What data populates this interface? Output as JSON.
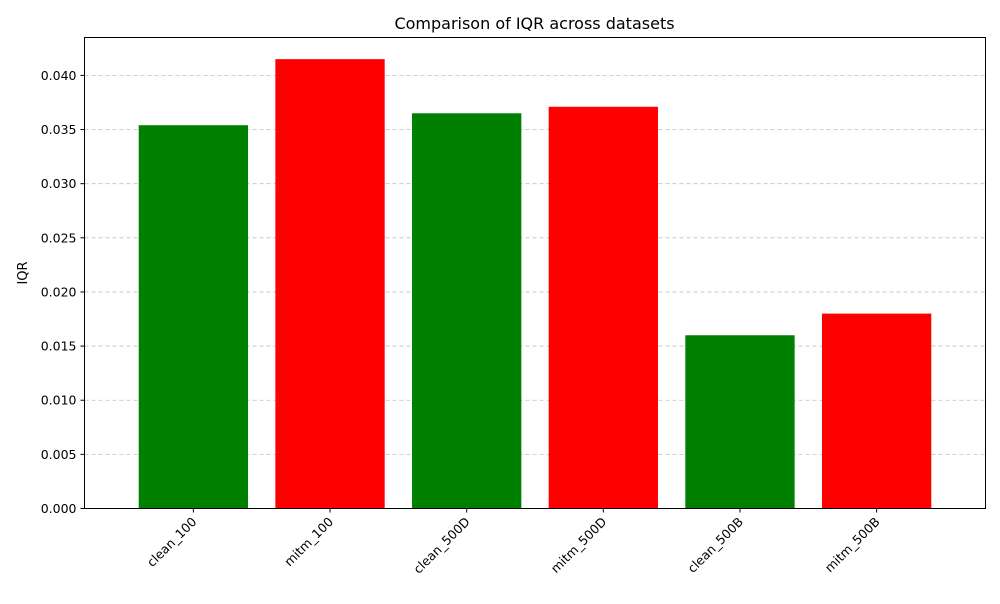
{
  "chart_data": {
    "type": "bar",
    "title": "Comparison of IQR across datasets",
    "xlabel": "",
    "ylabel": "IQR",
    "categories": [
      "clean_100",
      "mitm_100",
      "clean_500D",
      "mitm_500D",
      "clean_500B",
      "mitm_500B"
    ],
    "values": [
      0.0354,
      0.0415,
      0.0365,
      0.0371,
      0.016,
      0.018
    ],
    "bar_colors": [
      "#008000",
      "#ff0000",
      "#008000",
      "#ff0000",
      "#008000",
      "#ff0000"
    ],
    "ylim": [
      0,
      0.0435
    ],
    "yticks": [
      0.0,
      0.005,
      0.01,
      0.015,
      0.02,
      0.025,
      0.03,
      0.035,
      0.04
    ],
    "ytick_labels": [
      "0.000",
      "0.005",
      "0.010",
      "0.015",
      "0.020",
      "0.025",
      "0.030",
      "0.035",
      "0.040"
    ],
    "grid": {
      "y": true,
      "x": false,
      "style": "dashed",
      "color": "#c0c0c0"
    },
    "xtick_rotation": "45"
  }
}
